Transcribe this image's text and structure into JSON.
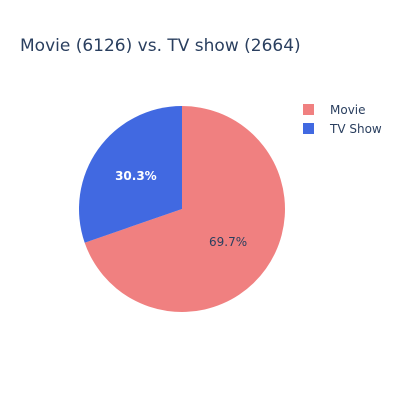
{
  "chart_data": {
    "type": "pie",
    "title": "Movie (6126) vs. TV show (2664)",
    "slices": [
      {
        "label": "Movie",
        "value": 6126,
        "percent_label": "69.7%",
        "color": "#f08080",
        "label_color": "#2a3f5f"
      },
      {
        "label": "TV Show",
        "value": 2664,
        "percent_label": "30.3%",
        "color": "#4169e1",
        "label_color": "#ffffff"
      }
    ],
    "legend": {
      "placement": "top-right",
      "items": [
        "Movie",
        "TV Show"
      ]
    },
    "start_angle_deg": 90,
    "direction": "clockwise"
  }
}
